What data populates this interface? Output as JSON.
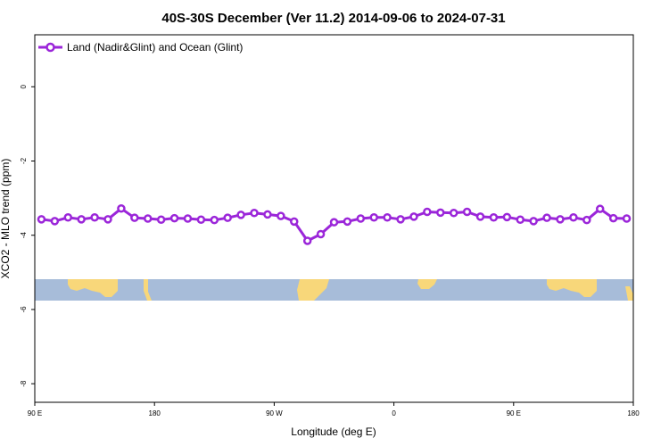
{
  "chart_data": {
    "type": "line",
    "title": "40S-30S December (Ver 11.2)   2014-09-06 to 2024-07-31",
    "xlabel": "Longitude (deg E)",
    "ylabel": "XCO2 - MLO trend (ppm)",
    "x_ticks": [
      {
        "value": 90,
        "label": "90 E"
      },
      {
        "value": 180,
        "label": "180"
      },
      {
        "value": 270,
        "label": "90 W"
      },
      {
        "value": 360,
        "label": "0"
      },
      {
        "value": 450,
        "label": "90 E"
      },
      {
        "value": 540,
        "label": "180"
      }
    ],
    "y_ticks": [
      0,
      -2,
      -4,
      -6,
      -8
    ],
    "xlim": [
      90,
      540
    ],
    "ylim": [
      -8.5,
      1.4
    ],
    "grid": false,
    "legend_position": "top-left",
    "line_color": "#9b26d9",
    "map_strip": {
      "lat_range": [
        -40,
        -30
      ],
      "ocean_color": "#a7bcd9",
      "land_color": "#f8d77a"
    },
    "series": [
      {
        "name": "Land (Nadir&Glint) and Ocean (Glint)",
        "x": [
          95,
          105,
          115,
          125,
          135,
          145,
          155,
          165,
          175,
          185,
          195,
          205,
          215,
          225,
          235,
          245,
          255,
          265,
          275,
          285,
          295,
          305,
          315,
          325,
          335,
          345,
          355,
          365,
          375,
          385,
          395,
          405,
          415,
          425,
          435,
          445,
          455,
          465,
          475,
          485,
          495,
          505,
          515,
          525,
          535
        ],
        "values": [
          -3.57,
          -3.62,
          -3.52,
          -3.57,
          -3.52,
          -3.57,
          -3.28,
          -3.53,
          -3.55,
          -3.58,
          -3.54,
          -3.55,
          -3.58,
          -3.59,
          -3.53,
          -3.45,
          -3.4,
          -3.44,
          -3.48,
          -3.63,
          -4.15,
          -3.97,
          -3.65,
          -3.63,
          -3.55,
          -3.52,
          -3.52,
          -3.57,
          -3.5,
          -3.37,
          -3.39,
          -3.4,
          -3.37,
          -3.5,
          -3.52,
          -3.51,
          -3.58,
          -3.62,
          -3.53,
          -3.57,
          -3.52,
          -3.59,
          -3.29,
          -3.54,
          -3.55
        ]
      }
    ]
  }
}
